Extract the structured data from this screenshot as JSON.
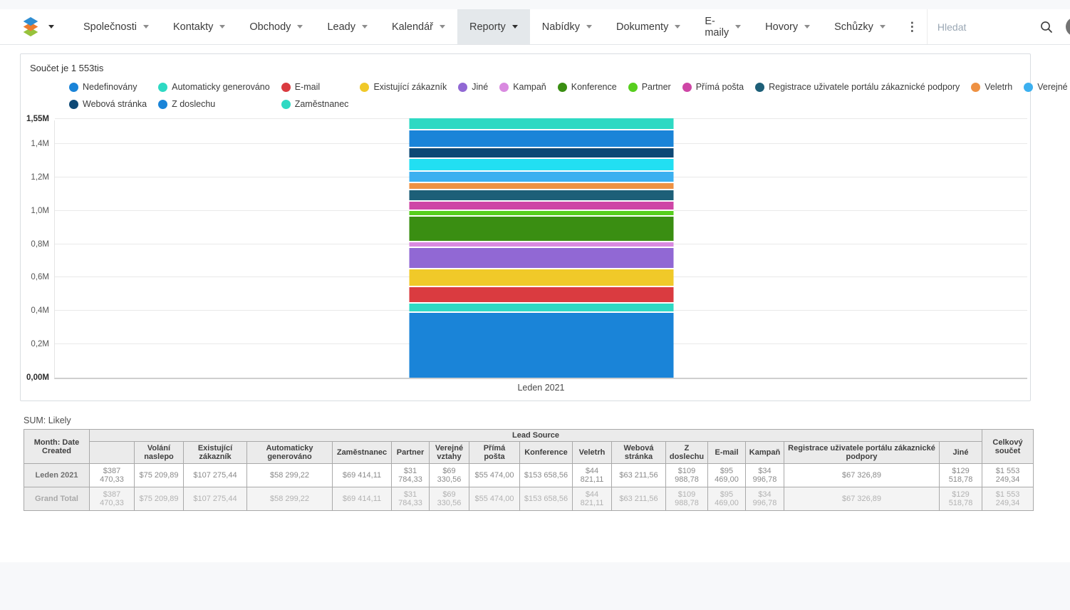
{
  "nav": {
    "menu": [
      {
        "label": "Společnosti",
        "active": false
      },
      {
        "label": "Kontakty",
        "active": false
      },
      {
        "label": "Obchody",
        "active": false
      },
      {
        "label": "Leady",
        "active": false
      },
      {
        "label": "Kalendář",
        "active": false
      },
      {
        "label": "Reporty",
        "active": true
      },
      {
        "label": "Nabídky",
        "active": false
      },
      {
        "label": "Dokumenty",
        "active": false
      },
      {
        "label": "E-maily",
        "active": false
      },
      {
        "label": "Hovory",
        "active": false
      },
      {
        "label": "Schůzky",
        "active": false
      }
    ],
    "search": {
      "placeholder": "Hledat"
    },
    "notification_count": "0"
  },
  "chart": {
    "title": "Součet je 1 553tis"
  },
  "chart_data": {
    "type": "bar",
    "stacked": true,
    "title": "Součet je 1 553tis",
    "categories": [
      "Leden 2021"
    ],
    "total": 1553249.34,
    "ylim": [
      0,
      1550000
    ],
    "grid": true,
    "legend_position": "top",
    "y_ticks": [
      {
        "value": 0,
        "label": "0,00M"
      },
      {
        "value": 200000,
        "label": "0,2M"
      },
      {
        "value": 400000,
        "label": "0,4M"
      },
      {
        "value": 600000,
        "label": "0,6M"
      },
      {
        "value": 800000,
        "label": "0,8M"
      },
      {
        "value": 1000000,
        "label": "1,0M"
      },
      {
        "value": 1200000,
        "label": "1,2M"
      },
      {
        "value": 1400000,
        "label": "1,4M"
      },
      {
        "value": 1550000,
        "label": "1,55M"
      }
    ],
    "series": [
      {
        "name": "Nedefinovány",
        "values": [
          387470.33
        ],
        "color": "#1a84d8"
      },
      {
        "name": "Automaticky generováno",
        "values": [
          58299.22
        ],
        "color": "#2ed9c3"
      },
      {
        "name": "E-mail",
        "values": [
          95469.0
        ],
        "color": "#da3b40"
      },
      {
        "name": "Existující zákazník",
        "values": [
          107275.44
        ],
        "color": "#f0c929"
      },
      {
        "name": "Jiné",
        "values": [
          129518.78
        ],
        "color": "#9168d4"
      },
      {
        "name": "Kampaň",
        "values": [
          34996.78
        ],
        "color": "#d98ae0"
      },
      {
        "name": "Konference",
        "values": [
          153658.56
        ],
        "color": "#3a8e12"
      },
      {
        "name": "Partner",
        "values": [
          31784.33
        ],
        "color": "#57ce1e"
      },
      {
        "name": "Přímá pošta",
        "values": [
          55474.0
        ],
        "color": "#ce46a6"
      },
      {
        "name": "Registrace uživatele portálu zákaznické podpory",
        "values": [
          67326.89
        ],
        "color": "#1d5f78"
      },
      {
        "name": "Veletrh",
        "values": [
          44821.11
        ],
        "color": "#ee9143"
      },
      {
        "name": "Verejné vztahy",
        "values": [
          69330.56
        ],
        "color": "#3cb0f0"
      },
      {
        "name": "Volání naslepo",
        "values": [
          75209.89
        ],
        "color": "#22dff2"
      },
      {
        "name": "Webová stránka",
        "values": [
          63211.56
        ],
        "color": "#0d4875"
      },
      {
        "name": "Z doslechu",
        "values": [
          109988.78
        ],
        "color": "#1a84d8"
      },
      {
        "name": "Zaměstnanec",
        "values": [
          69414.11
        ],
        "color": "#2ed9c3"
      }
    ]
  },
  "table": {
    "caption": "SUM: Likely",
    "corner_header": "Month: Date Created",
    "group_header": "Lead Source",
    "total_header": "Celkový součet",
    "columns": [
      "",
      "Volání naslepo",
      "Existující zákazník",
      "Automaticky generováno",
      "Zaměstnanec",
      "Partner",
      "Verejné vztahy",
      "Přímá pošta",
      "Konference",
      "Veletrh",
      "Webová stránka",
      "Z doslechu",
      "E-mail",
      "Kampaň",
      "Registrace uživatele portálu zákaznické podpory",
      "Jiné"
    ],
    "rows": [
      {
        "label": "Leden 2021",
        "values": [
          "$387 470,33",
          "$75 209,89",
          "$107 275,44",
          "$58 299,22",
          "$69 414,11",
          "$31 784,33",
          "$69 330,56",
          "$55 474,00",
          "$153 658,56",
          "$44 821,11",
          "$63 211,56",
          "$109 988,78",
          "$95 469,00",
          "$34 996,78",
          "$67 326,89",
          "$129 518,78"
        ],
        "total": "$1 553 249,34"
      },
      {
        "label": "Grand Total",
        "values": [
          "$387 470,33",
          "$75 209,89",
          "$107 275,44",
          "$58 299,22",
          "$69 414,11",
          "$31 784,33",
          "$69 330,56",
          "$55 474,00",
          "$153 658,56",
          "$44 821,11",
          "$63 211,56",
          "$109 988,78",
          "$95 469,00",
          "$34 996,78",
          "$67 326,89",
          "$129 518,78"
        ],
        "total": "$1 553 249,34"
      }
    ]
  }
}
